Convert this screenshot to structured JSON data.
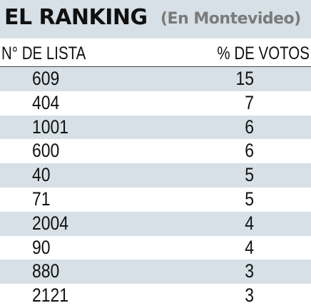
{
  "chart_data": {
    "type": "table",
    "title": "EL RANKING",
    "subtitle": "(En Montevideo)",
    "columns": [
      "N° DE LISTA",
      "% DE VOTOS"
    ],
    "categories": [
      "609",
      "404",
      "1001",
      "600",
      "40",
      "71",
      "2004",
      "90",
      "880",
      "2121"
    ],
    "values": [
      15,
      7,
      6,
      6,
      5,
      5,
      4,
      4,
      3,
      3
    ],
    "colors": {
      "band": "#d6e0e6",
      "text": "#111111",
      "subtitle": "#7a7a7a"
    }
  }
}
